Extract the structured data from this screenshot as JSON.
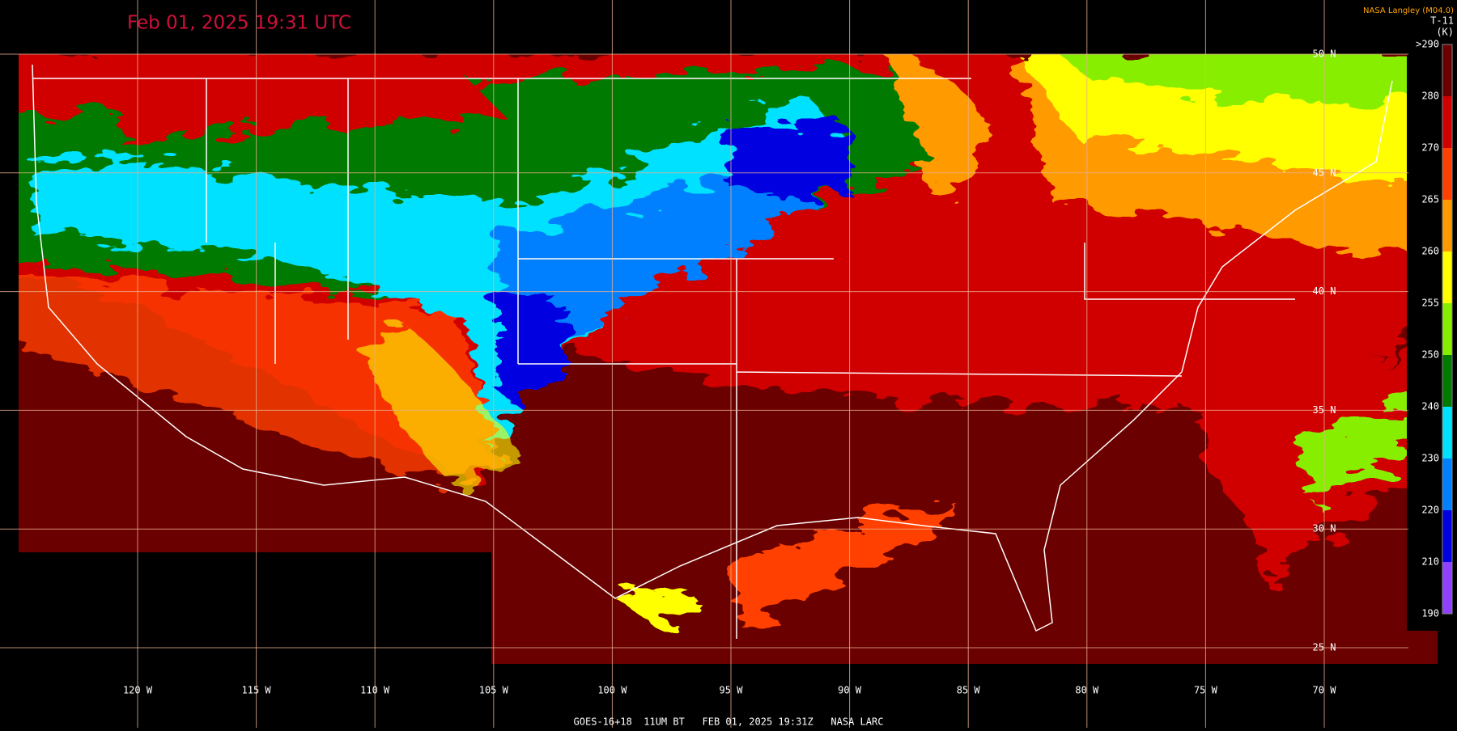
{
  "header": {
    "title": "Feb 01, 2025 19:31 UTC",
    "source": "NASA Langley (M04.0)",
    "product": "T-11",
    "unit": "(K)"
  },
  "colorbar": {
    "labels": [
      ">290",
      "280",
      "270",
      "265",
      "260",
      "255",
      "250",
      "240",
      "230",
      "220",
      "210",
      "190"
    ],
    "colors": [
      "#6b0000",
      "#d00000",
      "#ff4000",
      "#ff9a00",
      "#ffff00",
      "#88ee00",
      "#007a00",
      "#00e0ff",
      "#0080ff",
      "#0000e0",
      "#9040ff"
    ]
  },
  "lat_labels": [
    "50 N",
    "45 N",
    "40 N",
    "35 N",
    "30 N",
    "25 N"
  ],
  "lon_labels": [
    "120 W",
    "115 W",
    "110 W",
    "105 W",
    "100 W",
    "95 W",
    "90 W",
    "85 W",
    "80 W",
    "75 W",
    "70 W"
  ],
  "footer": "GOES-16+18  11UM BT   FEB 01, 2025 19:31Z   NASA LARC"
}
